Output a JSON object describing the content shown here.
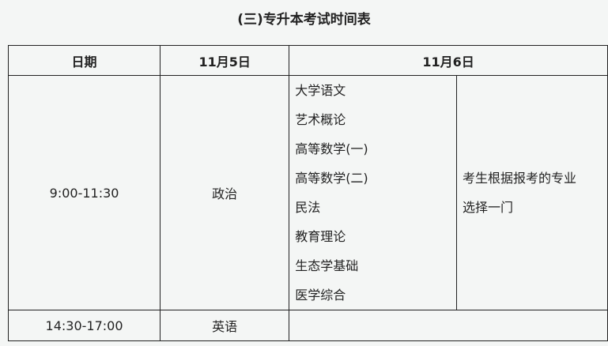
{
  "title": "(三)专升本考试时间表",
  "headers": [
    "日期",
    "11月5日",
    "11月6日"
  ],
  "rows": [
    {
      "time": "9:00-11:30",
      "nov5": "政治",
      "nov6_subjects": [
        "大学语文",
        "艺术概论",
        "高等数学(一)",
        "高等数学(二)",
        "民法",
        "教育理论",
        "生态学基础",
        "医学综合"
      ],
      "nov6_note": [
        "考生根据报考的专业",
        "选择一门"
      ]
    },
    {
      "time": "14:30-17:00",
      "nov5": "英语",
      "nov6": ""
    }
  ]
}
